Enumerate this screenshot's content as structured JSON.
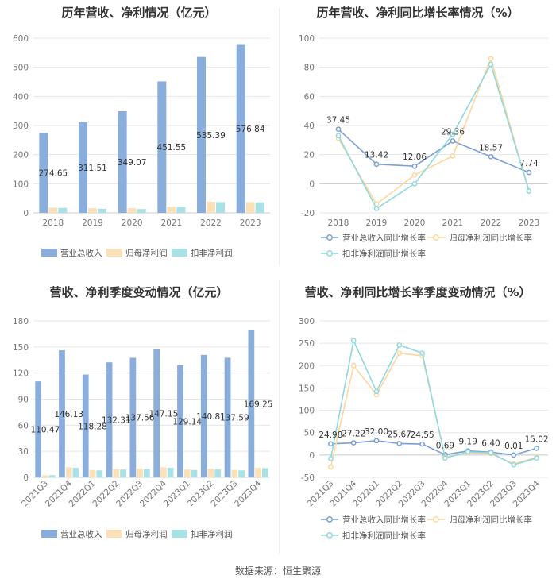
{
  "charts": [
    {
      "type": "bar",
      "title": "历年营收、净利情况（亿元）",
      "categories": [
        "2018",
        "2019",
        "2020",
        "2021",
        "2022",
        "2023"
      ],
      "ylim": [
        0,
        600
      ],
      "yticks": [
        0,
        100,
        200,
        300,
        400,
        500,
        600
      ],
      "series": [
        {
          "name": "营业总收入",
          "color": "#8aaedc",
          "values": [
            274.65,
            311.51,
            349.07,
            451.55,
            535.39,
            576.84
          ],
          "labels": [
            "274.65",
            "311.51",
            "349.07",
            "451.55",
            "535.39",
            "576.84"
          ]
        },
        {
          "name": "归母净利润",
          "color": "#fce0b8",
          "values": [
            18,
            16,
            16,
            21,
            38,
            37
          ]
        },
        {
          "name": "扣非净利润",
          "color": "#a9e2e6",
          "values": [
            17,
            14,
            13,
            20,
            37,
            36
          ]
        }
      ]
    },
    {
      "type": "line",
      "title": "历年营收、净利同比增长率情况（%）",
      "categories": [
        "2018",
        "2019",
        "2020",
        "2021",
        "2022",
        "2023"
      ],
      "ylim": [
        -20,
        100
      ],
      "yticks": [
        -20,
        0,
        20,
        40,
        60,
        80,
        100
      ],
      "series": [
        {
          "name": "营业总收入同比增长率",
          "color": "#7b9fd4",
          "values": [
            37.45,
            13.42,
            12.06,
            29.36,
            18.57,
            7.74
          ],
          "labels": [
            "37.45",
            "13.42",
            "12.06",
            "29.36",
            "18.57",
            "7.74"
          ]
        },
        {
          "name": "归母净利润同比增长率",
          "color": "#fcd79e",
          "values": [
            31,
            -14,
            6,
            19,
            86,
            -5
          ]
        },
        {
          "name": "扣非净利润同比增长率",
          "color": "#8fd9de",
          "values": [
            33,
            -17,
            0,
            34,
            82,
            -5
          ]
        }
      ]
    },
    {
      "type": "bar",
      "title": "营收、净利季度变动情况（亿元）",
      "categories": [
        "2021Q3",
        "2021Q4",
        "2022Q1",
        "2022Q2",
        "2022Q3",
        "2022Q4",
        "2023Q1",
        "2023Q2",
        "2023Q3",
        "2023Q4"
      ],
      "ylim": [
        0,
        180
      ],
      "yticks": [
        0,
        30,
        60,
        90,
        120,
        150,
        180
      ],
      "series": [
        {
          "name": "营业总收入",
          "color": "#8aaedc",
          "values": [
            110.47,
            146.13,
            118.28,
            132.31,
            137.56,
            147.15,
            129.14,
            140.81,
            137.59,
            169.25
          ],
          "labels": [
            "110.47",
            "146.13",
            "118.28",
            "132.31",
            "137.56",
            "147.15",
            "129.14",
            "140.81",
            "137.59",
            "169.25"
          ]
        },
        {
          "name": "归母净利润",
          "color": "#fce0b8",
          "values": [
            2.5,
            11.5,
            8.5,
            9.5,
            10,
            11.5,
            9,
            10,
            8.5,
            11
          ]
        },
        {
          "name": "扣非净利润",
          "color": "#a9e2e6",
          "values": [
            2.5,
            11,
            8,
            9,
            9.5,
            11,
            8.5,
            9,
            8,
            10.5
          ]
        }
      ]
    },
    {
      "type": "line",
      "title": "营收、净利同比增长率季度变动情况（%）",
      "categories": [
        "2021Q3",
        "2021Q4",
        "2022Q1",
        "2022Q2",
        "2022Q3",
        "2022Q4",
        "2023Q1",
        "2023Q2",
        "2023Q3",
        "2023Q4"
      ],
      "ylim": [
        -50,
        300
      ],
      "yticks": [
        -50,
        0,
        50,
        100,
        150,
        200,
        250,
        300
      ],
      "series": [
        {
          "name": "营业总收入同比增长率",
          "color": "#7b9fd4",
          "values": [
            24.98,
            27.22,
            32.0,
            25.67,
            24.55,
            0.69,
            9.19,
            6.4,
            0.01,
            15.02
          ],
          "labels": [
            "24.98",
            "27.22",
            "32.00",
            "25.67",
            "24.55",
            "0.69",
            "9.19",
            "6.40",
            "0.01",
            "15.02"
          ]
        },
        {
          "name": "归母净利润同比增长率",
          "color": "#fcd79e",
          "values": [
            -27,
            200,
            135,
            228,
            222,
            -5,
            5,
            3,
            -20,
            -5
          ]
        },
        {
          "name": "扣非净利润同比增长率",
          "color": "#8fd9de",
          "values": [
            -8,
            256,
            142,
            246,
            228,
            -7,
            7,
            5,
            -22,
            -7
          ]
        }
      ]
    }
  ],
  "source": "数据来源：恒生聚源"
}
